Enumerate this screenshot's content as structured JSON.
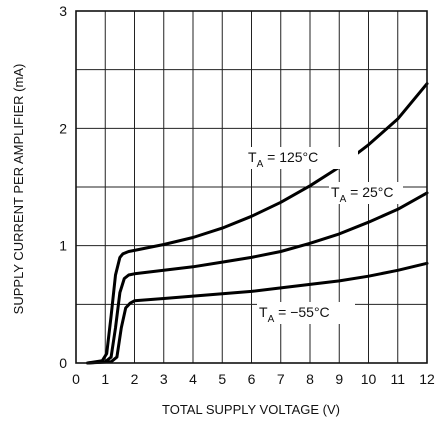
{
  "chart_data": {
    "type": "line",
    "xlabel": "TOTAL SUPPLY VOLTAGE (V)",
    "ylabel": "SUPPLY CURRENT PER AMPLIFIER (mA)",
    "xlim": [
      0,
      12
    ],
    "ylim": [
      0,
      3
    ],
    "x_ticks": [
      "0",
      "1",
      "2",
      "3",
      "4",
      "5",
      "6",
      "7",
      "8",
      "9",
      "10",
      "11",
      "12"
    ],
    "y_ticks": [
      "0",
      "1",
      "2",
      "3"
    ],
    "grid": true,
    "legend": "none",
    "series": [
      {
        "name": "T",
        "sub": "A",
        "cond": " = 125°C",
        "x": [
          0.4,
          0.9,
          1.05,
          1.2,
          1.35,
          1.5,
          1.6,
          1.8,
          2,
          3,
          4,
          5,
          6,
          7,
          8,
          9,
          10,
          11,
          12
        ],
        "y": [
          0.0,
          0.02,
          0.08,
          0.4,
          0.75,
          0.9,
          0.93,
          0.95,
          0.96,
          1.01,
          1.07,
          1.15,
          1.25,
          1.37,
          1.51,
          1.67,
          1.86,
          2.08,
          2.38
        ]
      },
      {
        "name": "T",
        "sub": "A",
        "cond": " = 25°C",
        "x": [
          0.4,
          1.0,
          1.2,
          1.35,
          1.5,
          1.65,
          1.8,
          2,
          3,
          4,
          5,
          6,
          7,
          8,
          9,
          10,
          11,
          12
        ],
        "y": [
          0.0,
          0.01,
          0.05,
          0.3,
          0.6,
          0.72,
          0.75,
          0.76,
          0.79,
          0.82,
          0.86,
          0.9,
          0.95,
          1.02,
          1.1,
          1.2,
          1.31,
          1.45
        ]
      },
      {
        "name": "T",
        "sub": "A",
        "cond": " = −55°C",
        "x": [
          0.4,
          1.2,
          1.4,
          1.55,
          1.7,
          1.85,
          2,
          3,
          4,
          5,
          6,
          7,
          8,
          9,
          10,
          11,
          12
        ],
        "y": [
          0.0,
          0.01,
          0.05,
          0.3,
          0.47,
          0.51,
          0.53,
          0.55,
          0.57,
          0.59,
          0.61,
          0.64,
          0.67,
          0.7,
          0.74,
          0.79,
          0.85
        ]
      }
    ]
  }
}
